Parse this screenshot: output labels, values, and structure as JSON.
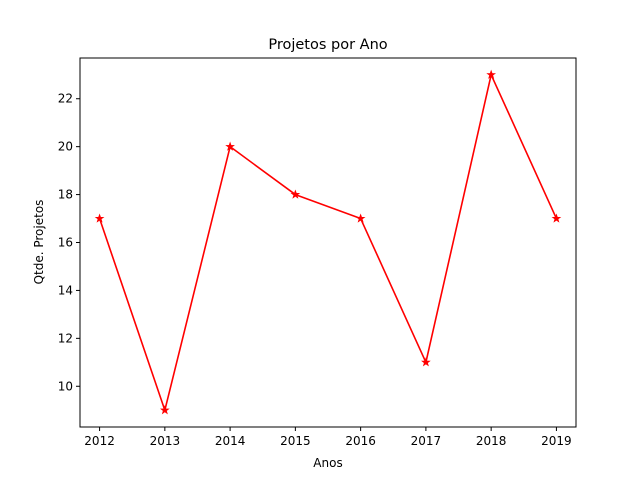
{
  "chart_data": {
    "type": "line",
    "title": "Projetos por Ano",
    "xlabel": "Anos",
    "ylabel": "Qtde. Projetos",
    "x": [
      "2012",
      "2013",
      "2014",
      "2015",
      "2016",
      "2017",
      "2018",
      "2019"
    ],
    "series": [
      {
        "values": [
          17,
          9,
          20,
          18,
          17,
          11,
          23,
          17
        ],
        "color": "#ff0000",
        "marker": "star"
      }
    ],
    "xlim": [
      2011.7,
      2019.3
    ],
    "ylim": [
      8.3,
      23.7
    ],
    "yticks": [
      10,
      12,
      14,
      16,
      18,
      20,
      22
    ],
    "grid": false,
    "legend": false
  }
}
